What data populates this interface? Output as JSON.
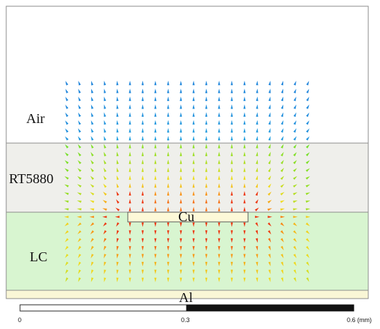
{
  "layers": [
    {
      "label": "Air",
      "color": "#ffffff"
    },
    {
      "label": "RT5880",
      "color": "#efefeb"
    },
    {
      "label": "LC",
      "color": "#d8f5d0"
    },
    {
      "label": "Al",
      "color": "#f9f6d6"
    }
  ],
  "conductor": {
    "label": "Cu",
    "color": "#fdf9d8"
  },
  "scale_bar": {
    "ticks": [
      "0",
      "0.3",
      "0.6 (mm)"
    ]
  },
  "colors": {
    "field_low": "#1e3fd0",
    "field_mid": "#6ee02a",
    "field_high": "#e81a10",
    "border": "#888888"
  }
}
